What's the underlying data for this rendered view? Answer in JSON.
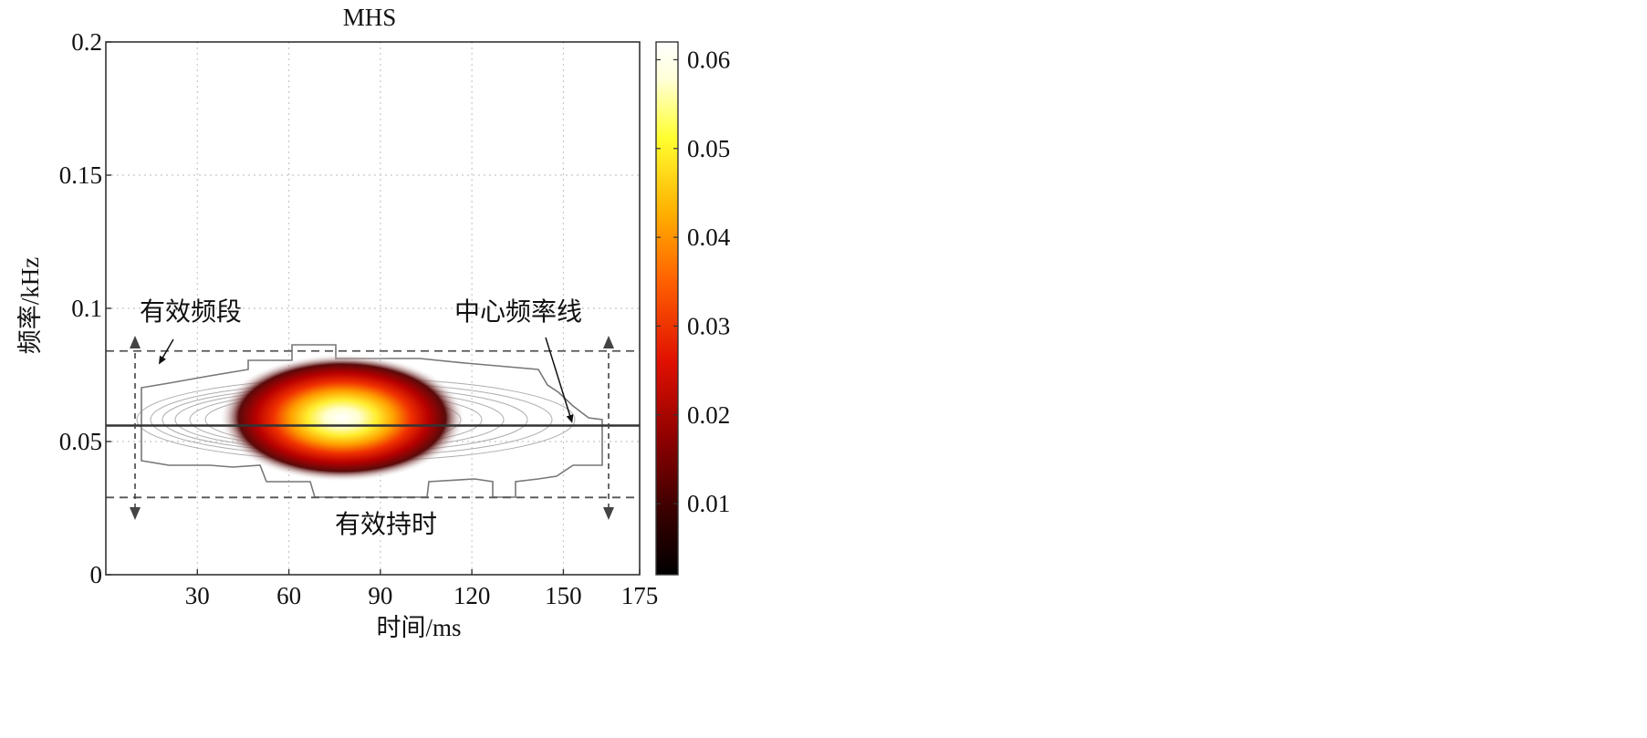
{
  "chart_data": {
    "type": "heatmap",
    "title": "MHS",
    "xlabel": "时间/ms",
    "ylabel": "频率/kHz",
    "xlim": [
      0,
      175
    ],
    "ylim": [
      0,
      0.2
    ],
    "xticks": [
      30,
      60,
      90,
      120,
      150,
      175
    ],
    "xtick_labels": [
      "30",
      "60",
      "90",
      "120",
      "150",
      "175"
    ],
    "yticks": [
      0,
      0.05,
      0.1,
      0.15,
      0.2
    ],
    "ytick_labels": [
      "0",
      "0.05",
      "0.1",
      "0.15",
      "0.2"
    ],
    "grid": true,
    "colorbar": {
      "range": [
        0.002,
        0.062
      ],
      "ticks": [
        0.01,
        0.02,
        0.03,
        0.04,
        0.05,
        0.06
      ],
      "tick_labels": [
        "0.01",
        "0.02",
        "0.03",
        "0.04",
        "0.05",
        "0.06"
      ],
      "colormap": [
        "#000000",
        "#3a0000",
        "#8b0000",
        "#e01000",
        "#ff6000",
        "#ffb000",
        "#ffff30",
        "#ffffd8",
        "#ffffff"
      ]
    },
    "energy_peak": {
      "time_ms": 77,
      "freq_khz": 0.055,
      "value": 0.062
    },
    "center_frequency_line_khz": 0.056,
    "effective_band_khz": [
      0.029,
      0.084
    ],
    "effective_duration_ms": [
      10,
      165
    ],
    "annotations": {
      "band": "有效频段",
      "center_line": "中心频率线",
      "duration": "有效持时"
    }
  }
}
